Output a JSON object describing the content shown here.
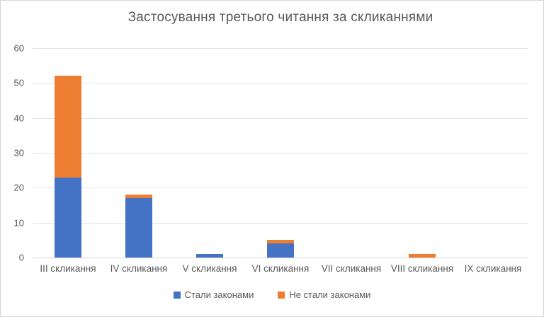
{
  "chart": {
    "colors": {
      "series_blue": "#4472C4",
      "series_orange": "#ED7D31",
      "gridline": "#E4E4E4",
      "axis_line": "#D9D9D9",
      "text": "#595959",
      "background": "#FFFFFF",
      "border": "#D6D6D6"
    }
  },
  "chart_data": {
    "type": "bar",
    "stacked": true,
    "title": "Застосування третього читання за скликаннями",
    "categories": [
      "ІІІ скликання",
      "IV скликання",
      "V скликання",
      "VI скликання",
      "VII скликання",
      "VIII скликання",
      "IX скликання"
    ],
    "series": [
      {
        "name": "Стали законами",
        "color": "#4472C4",
        "values": [
          23,
          17,
          1,
          4,
          0,
          0,
          0
        ]
      },
      {
        "name": "Не стали законами",
        "color": "#ED7D31",
        "values": [
          29,
          1,
          0,
          1,
          0,
          1,
          0
        ]
      }
    ],
    "xlabel": "",
    "ylabel": "",
    "ylim": [
      0,
      60
    ],
    "yticks": [
      0,
      10,
      20,
      30,
      40,
      50,
      60
    ],
    "grid": true,
    "legend_position": "bottom"
  }
}
